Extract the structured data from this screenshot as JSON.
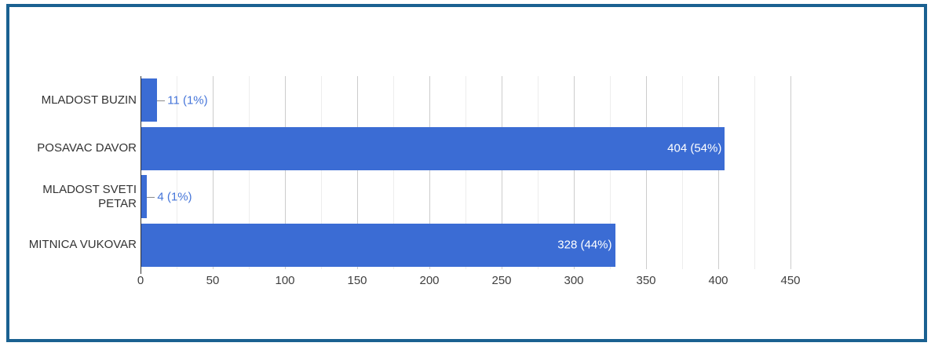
{
  "chart_data": {
    "type": "bar",
    "orientation": "horizontal",
    "title": "",
    "xlabel": "",
    "ylabel": "",
    "categories": [
      "MLADOST BUZIN",
      "POSAVAC DAVOR",
      "MLADOST SVETI PETAR",
      "MITNICA VUKOVAR"
    ],
    "values": [
      11,
      404,
      4,
      328
    ],
    "data_labels": [
      "11 (1%)",
      "404 (54%)",
      "4 (1%)",
      "328 (44%)"
    ],
    "label_placement": [
      "outside",
      "inside",
      "outside",
      "inside"
    ],
    "percentages": [
      1,
      54,
      1,
      44
    ],
    "xlim": [
      0,
      479
    ],
    "x_major_ticks": [
      0,
      50,
      100,
      150,
      200,
      250,
      300,
      350,
      400,
      450
    ],
    "x_minor_ticks": [
      25,
      75,
      125,
      175,
      225,
      275,
      325,
      375,
      425
    ],
    "grid": true,
    "legend": "none"
  },
  "style": {
    "bar_color": "#3b6cd4",
    "inside_label_color": "#ffffff",
    "outside_label_color": "#4575d9",
    "leader_line_color": "#8a8a8a",
    "major_gridline_color": "#cccccc",
    "minor_gridline_color": "#ededed",
    "axis_line_color": "#333333",
    "category_label_color": "#333333",
    "tick_label_color": "#404040",
    "frame_border_color": "#1a6191",
    "background_color": "#ffffff"
  }
}
